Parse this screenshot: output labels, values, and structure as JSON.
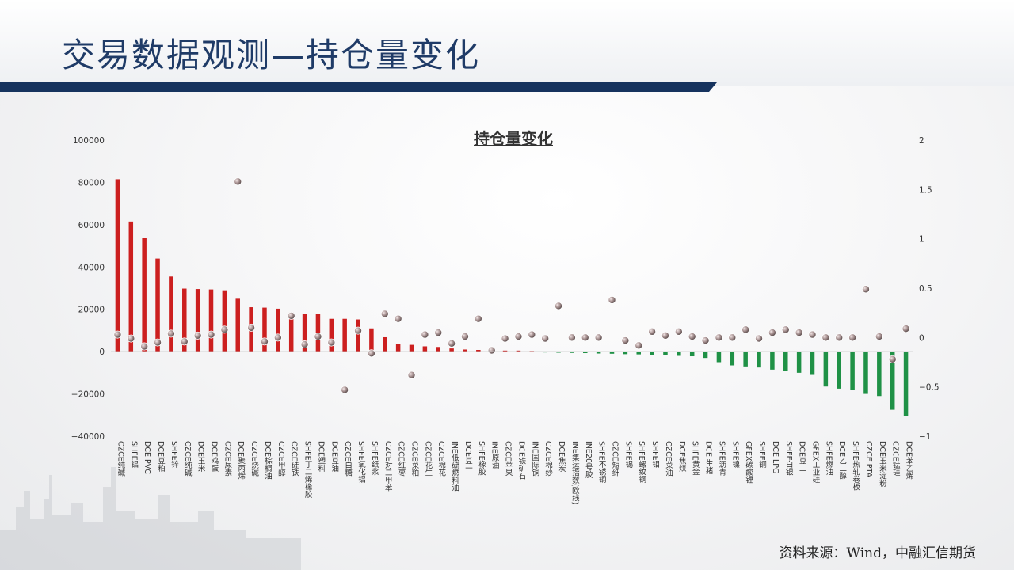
{
  "page": {
    "title": "交易数据观测—持仓量变化",
    "source": "资料来源：Wind，中融汇信期货"
  },
  "colors": {
    "title": "#1f3b67",
    "band": "#16335e",
    "positive_bar": "#cc1f1f",
    "negative_bar": "#1f9146",
    "dot": "#8a8a8a"
  },
  "chart_data": {
    "type": "bar",
    "title": "持仓量变化",
    "categories": [
      "CZCE纯碱",
      "SHFE铝",
      "DCE PVC",
      "DCE豆粕",
      "SHFE锌",
      "CZCE纯碱",
      "DCE玉米",
      "DCE鸡蛋",
      "CZCE尿素",
      "DCE聚丙烯",
      "CZCE烧碱",
      "DCE棕榈油",
      "CZCE甲醇",
      "CZCE硅铁",
      "SHFE丁二烯橡胶",
      "DCE塑料",
      "DCE豆油",
      "CZCE白糖",
      "SHFE氧化铝",
      "SHFE纸浆",
      "CZCE对二甲苯",
      "CZCE红枣",
      "CZCE菜粕",
      "CZCE花生",
      "CZCE棉花",
      "INE低硫燃料油",
      "DCE豆一",
      "SHFE橡胶",
      "INE原油",
      "CZCE苹果",
      "DCE铁矿石",
      "INE国际铜",
      "CZCE棉纱",
      "DCE焦炭",
      "INE集运指数(欧线)",
      "INE20号胶",
      "SHFE不锈钢",
      "CZCE短纤",
      "SHFE锡",
      "SHFE螺纹钢",
      "SHFE钼",
      "CZCE菜油",
      "DCE焦煤",
      "SHFE黄金",
      "DCE 生猪",
      "SHFE沥青",
      "SHFE镍",
      "GFEX碳酸锂",
      "SHFE铜",
      "DCE LPG",
      "SHFE白银",
      "DCE豆二",
      "GFEX工业硅",
      "SHFE燃油",
      "DCE乙二醇",
      "SHFE热轧卷板",
      "CZCE PTA",
      "DCE玉米淀粉",
      "CZCE锰硅",
      "DCE苯乙烯"
    ],
    "series": [
      {
        "axis": "left",
        "values": [
          81500,
          61500,
          53800,
          44000,
          35500,
          29800,
          29600,
          29400,
          29000,
          25000,
          21000,
          20800,
          20300,
          18500,
          18000,
          17800,
          15500,
          15500,
          15200,
          11000,
          6800,
          3500,
          3200,
          2500,
          2200,
          1500,
          1000,
          800,
          600,
          500,
          500,
          300,
          -300,
          -500,
          -600,
          -700,
          -900,
          -1000,
          -1200,
          -1300,
          -1500,
          -1800,
          -2000,
          -2200,
          -3000,
          -5000,
          -6500,
          -7000,
          -7500,
          -8500,
          -9000,
          -10000,
          -11000,
          -16500,
          -17500,
          -18000,
          -20000,
          -21000,
          -27500,
          -30500
        ]
      },
      {
        "axis": "right",
        "values": [
          0.03,
          -0.01,
          -0.09,
          -0.05,
          0.04,
          -0.04,
          0.02,
          0.03,
          0.08,
          1.58,
          0.1,
          -0.04,
          0.0,
          0.22,
          -0.07,
          0.01,
          -0.05,
          -0.53,
          0.07,
          -0.16,
          0.24,
          0.19,
          -0.38,
          0.03,
          0.05,
          -0.06,
          0.01,
          0.19,
          -0.13,
          -0.01,
          0.01,
          0.03,
          -0.01,
          0.32,
          0.0,
          0.0,
          0.0,
          0.38,
          -0.03,
          -0.08,
          0.06,
          0.02,
          0.06,
          0.01,
          -0.03,
          0.0,
          0.0,
          0.08,
          -0.01,
          0.05,
          0.08,
          0.05,
          0.03,
          0.0,
          0.0,
          0.0,
          0.49,
          0.01,
          -0.22,
          0.09
        ]
      }
    ],
    "ylim": [
      -40000,
      100000
    ],
    "yticks": [
      -40000,
      -20000,
      0,
      20000,
      40000,
      60000,
      80000,
      100000
    ],
    "ytick_labels": [
      "−40000",
      "−20000",
      "0",
      "20000",
      "40000",
      "60000",
      "80000",
      "100000"
    ],
    "y2lim": [
      -1,
      2
    ],
    "y2ticks": [
      -1,
      -0.5,
      0,
      0.5,
      1,
      1.5,
      2
    ],
    "y2tick_labels": [
      "−1",
      "−0.5",
      "0",
      "0.5",
      "1",
      "1.5",
      "2"
    ],
    "legend": "none",
    "grid": false
  }
}
